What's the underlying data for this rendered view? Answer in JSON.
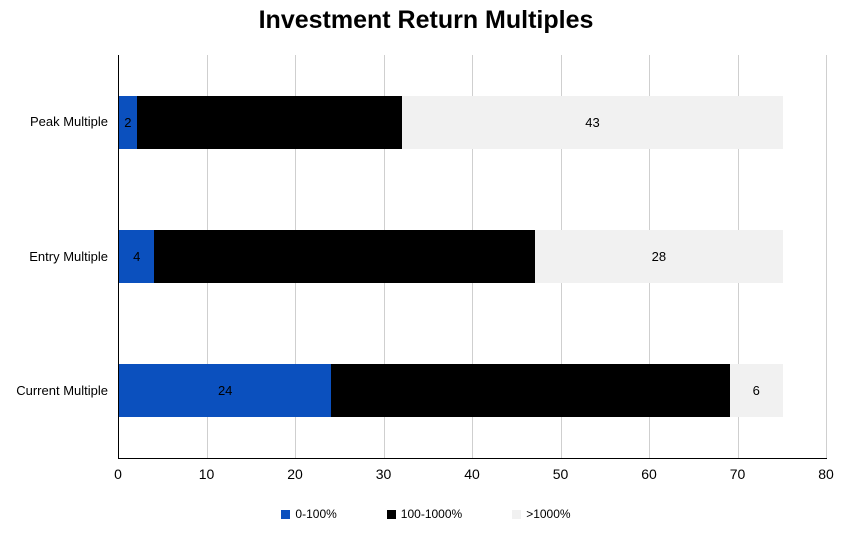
{
  "chart_data": {
    "type": "bar",
    "orientation": "horizontal",
    "stacked": true,
    "title": "Investment Return Multiples",
    "categories": [
      "Peak Multiple",
      "Entry Multiple",
      "Current Multiple"
    ],
    "series": [
      {
        "name": "0-100%",
        "color": "#0B50BE",
        "values": [
          2,
          4,
          24
        ],
        "labels_visible": true
      },
      {
        "name": "100-1000%",
        "color": "#000000",
        "values": [
          30,
          43,
          45
        ],
        "labels_visible": false
      },
      {
        "name": ">1000%",
        "color": "#F1F1F1",
        "values": [
          43,
          28,
          6
        ],
        "labels_visible": true
      }
    ],
    "xlim": [
      0,
      80
    ],
    "x_ticks": [
      0,
      10,
      20,
      30,
      40,
      50,
      60,
      70,
      80
    ],
    "xlabel": "",
    "ylabel": "",
    "grid": "vertical",
    "legend_position": "bottom",
    "axis_color": "#000000",
    "gridline_color": "#CFCFCF",
    "value_label_color": "#000000",
    "background_color": "#FFFFFF"
  }
}
